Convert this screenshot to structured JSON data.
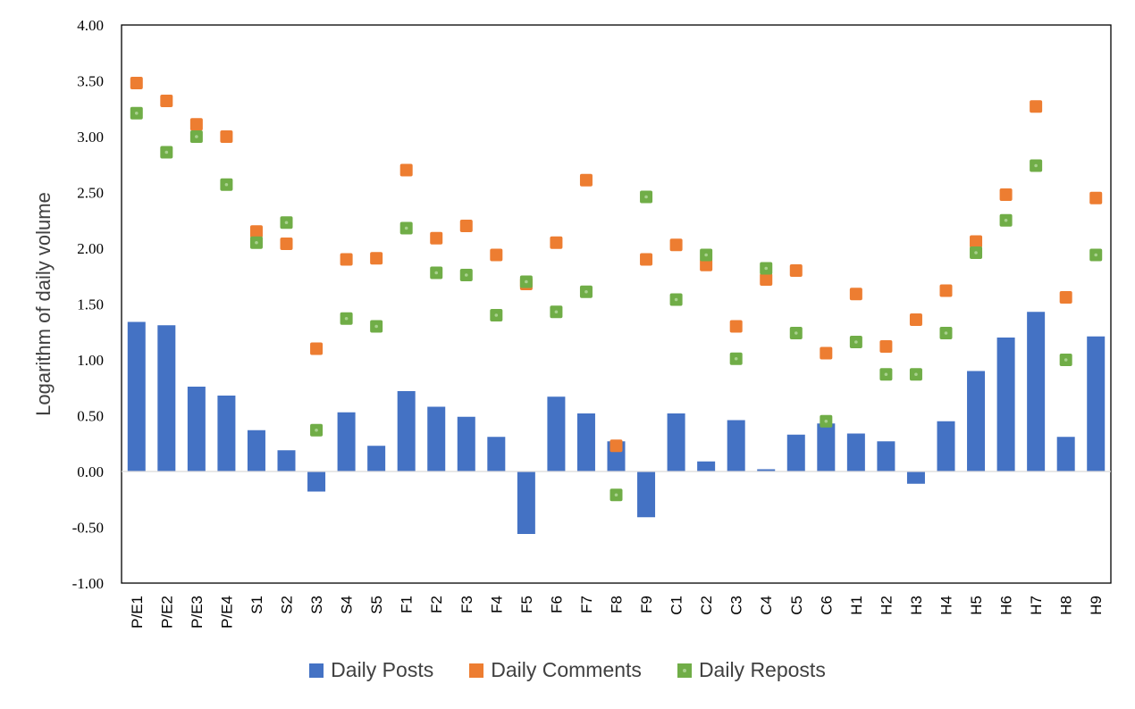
{
  "chart_data": {
    "type": "bar",
    "ylabel": "Logarithm of daily volume",
    "ylim": [
      -1.0,
      4.0
    ],
    "yticks": [
      "-1.00",
      "-0.50",
      "0.00",
      "0.50",
      "1.00",
      "1.50",
      "2.00",
      "2.50",
      "3.00",
      "3.50",
      "4.00"
    ],
    "categories": [
      "P/E1",
      "P/E2",
      "P/E3",
      "P/E4",
      "S1",
      "S2",
      "S3",
      "S4",
      "S5",
      "F1",
      "F2",
      "F3",
      "F4",
      "F5",
      "F6",
      "F7",
      "F8",
      "F9",
      "C1",
      "C2",
      "C3",
      "C4",
      "C5",
      "C6",
      "H1",
      "H2",
      "H3",
      "H4",
      "H5",
      "H6",
      "H7",
      "H8",
      "H9"
    ],
    "series": [
      {
        "name": "Daily Posts",
        "kind": "bar",
        "color": "#4472c4",
        "values": [
          1.34,
          1.31,
          0.76,
          0.68,
          0.37,
          0.19,
          -0.18,
          0.53,
          0.23,
          0.72,
          0.58,
          0.49,
          0.31,
          -0.56,
          0.67,
          0.52,
          0.27,
          -0.41,
          0.52,
          0.09,
          0.46,
          0.02,
          0.33,
          0.43,
          0.34,
          0.27,
          -0.11,
          0.45,
          0.9,
          1.2,
          1.43,
          0.31,
          1.21
        ]
      },
      {
        "name": "Daily Comments",
        "kind": "marker",
        "color": "#ed7d31",
        "values": [
          3.48,
          3.32,
          3.11,
          3.0,
          2.15,
          2.04,
          1.1,
          1.9,
          1.91,
          2.7,
          2.09,
          2.2,
          1.94,
          1.68,
          2.05,
          2.61,
          0.23,
          1.9,
          2.03,
          1.85,
          1.3,
          1.72,
          1.8,
          1.06,
          1.59,
          1.12,
          1.36,
          1.62,
          2.06,
          2.48,
          3.27,
          1.56,
          2.45
        ]
      },
      {
        "name": "Daily Reposts",
        "kind": "marker",
        "color": "#70ad47",
        "values": [
          3.21,
          2.86,
          3.0,
          2.57,
          2.05,
          2.23,
          0.37,
          1.37,
          1.3,
          2.18,
          1.78,
          1.76,
          1.4,
          1.7,
          1.43,
          1.61,
          -0.21,
          2.46,
          1.54,
          1.94,
          1.01,
          1.82,
          1.24,
          0.45,
          1.16,
          0.87,
          0.87,
          1.24,
          1.96,
          2.25,
          2.74,
          1.0,
          1.94
        ]
      }
    ],
    "grid": false,
    "legend_position": "bottom"
  }
}
